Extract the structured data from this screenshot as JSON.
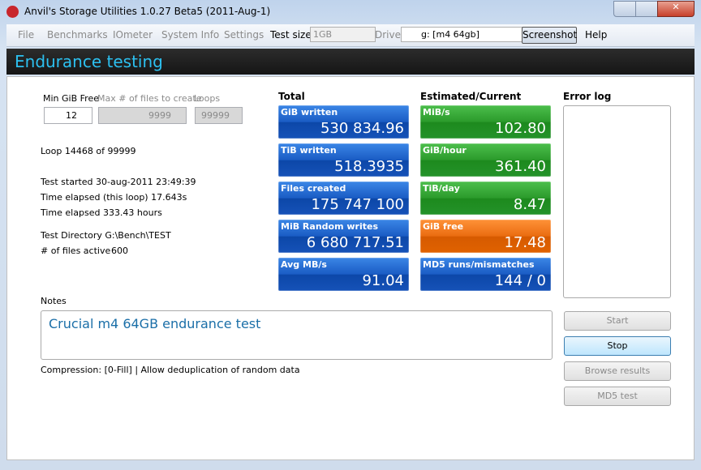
{
  "window": {
    "title": "Anvil's Storage Utilities 1.0.27 Beta5 (2011-Aug-1)"
  },
  "menu": {
    "items": [
      "File",
      "Benchmarks",
      "IOmeter",
      "System Info",
      "Settings"
    ],
    "test_size_label": "Test size",
    "test_size": "1GB",
    "drive_label": "Drive",
    "drive": "g: [m4 64gb]",
    "screenshot": "Screenshot",
    "help": "Help"
  },
  "header": {
    "title": "Endurance testing"
  },
  "settings": {
    "fields": [
      {
        "label": "Min GiB Free",
        "value": "12"
      },
      {
        "label": "Max # of files to create",
        "value": "9999"
      },
      {
        "label": "Loops",
        "value": "99999"
      }
    ]
  },
  "status": {
    "loop": "Loop 14468 of 99999",
    "lines": [
      "Test started 30-aug-2011 23:49:39",
      "Time elapsed (this loop) 17.643s",
      "Time elapsed 333.43 hours"
    ],
    "directory": "Test Directory G:\\Bench\\TEST",
    "files_active_label": "# of files active",
    "files_active": "600"
  },
  "totals": {
    "title": "Total",
    "tiles": [
      {
        "label": "GiB written",
        "value": "530 834.96"
      },
      {
        "label": "TiB written",
        "value": "518.3935"
      },
      {
        "label": "Files created",
        "value": "175 747 100"
      },
      {
        "label": "MiB Random writes",
        "value": "6 680 717.51"
      },
      {
        "label": "Avg MB/s",
        "value": "91.04"
      }
    ]
  },
  "estimated": {
    "title": "Estimated/Current",
    "tiles": [
      {
        "label": "MiB/s",
        "value": "102.80"
      },
      {
        "label": "GiB/hour",
        "value": "361.40"
      },
      {
        "label": "TiB/day",
        "value": "8.47"
      },
      {
        "label": "GiB free",
        "value": "17.48"
      },
      {
        "label": "MD5 runs/mismatches",
        "value": "144 / 0"
      }
    ]
  },
  "error_log": {
    "title": "Error log"
  },
  "notes": {
    "label": "Notes",
    "text": "Crucial m4 64GB endurance test",
    "compression": "Compression: [0-Fill] | Allow deduplication of random data"
  },
  "buttons": [
    "Start",
    "Stop",
    "Browse results",
    "MD5 test"
  ]
}
